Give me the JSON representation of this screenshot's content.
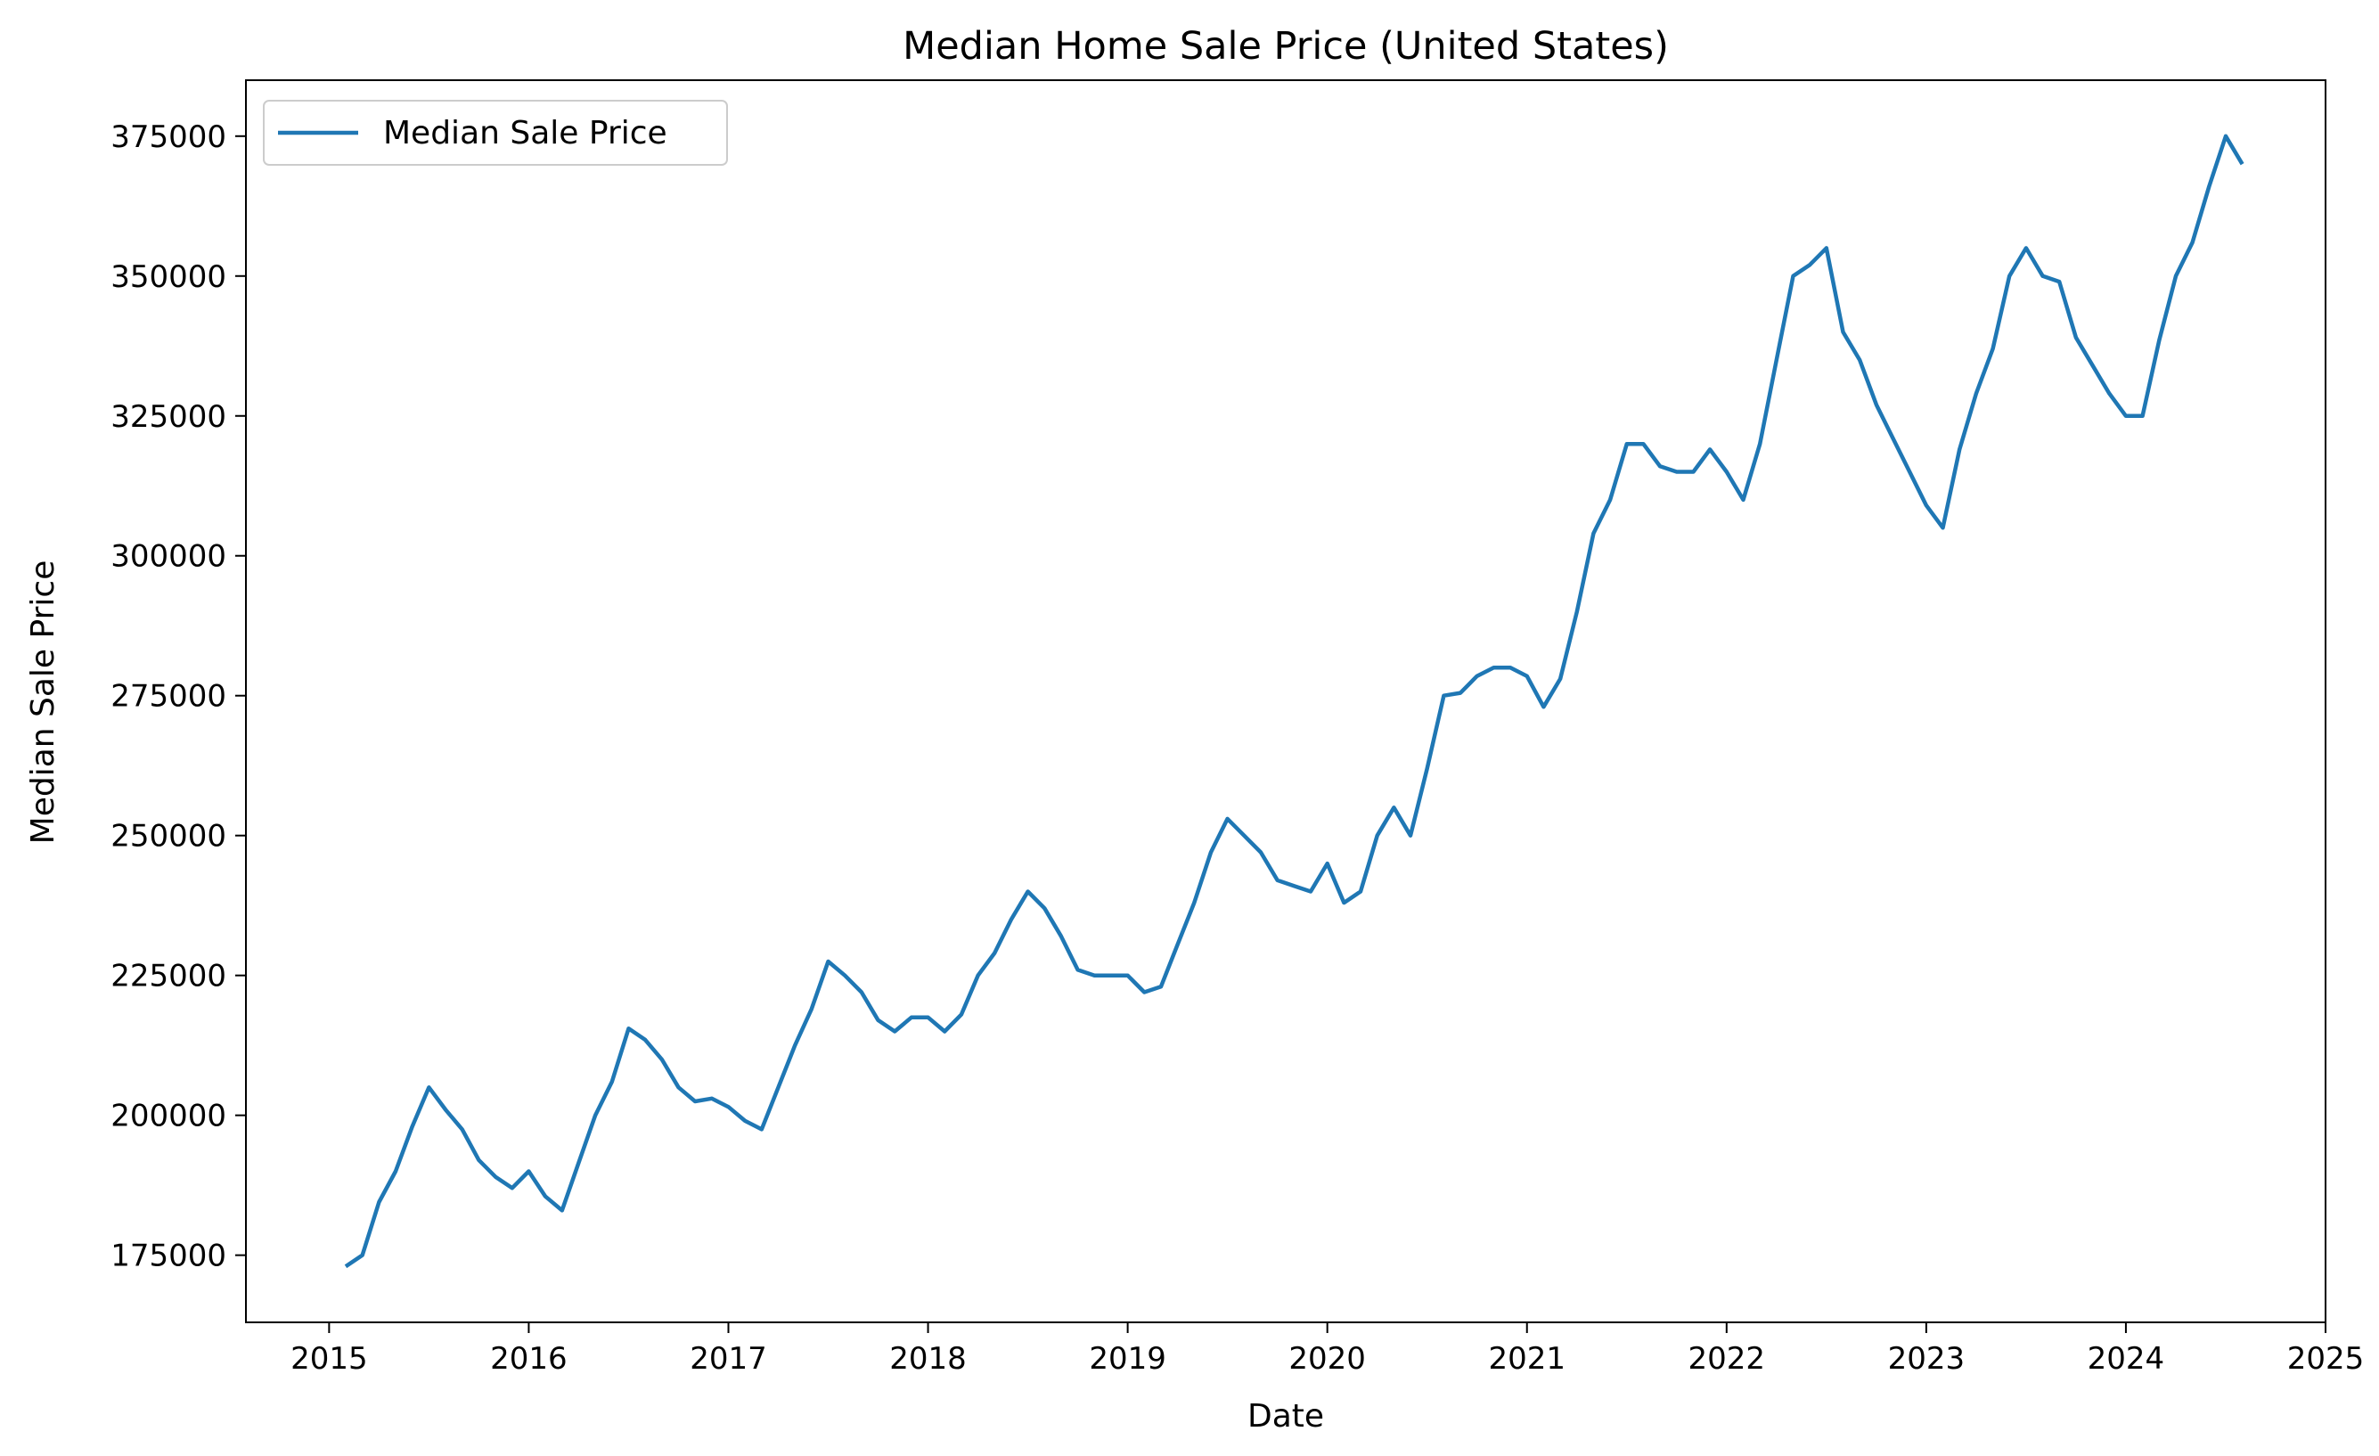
{
  "chart_data": {
    "type": "line",
    "title": "Median Home Sale Price (United States)",
    "xlabel": "Date",
    "ylabel": "Median Sale Price",
    "x_ticks": [
      "2015",
      "2016",
      "2017",
      "2018",
      "2019",
      "2020",
      "2021",
      "2022",
      "2023",
      "2024",
      "2025"
    ],
    "y_ticks": [
      175000,
      200000,
      225000,
      250000,
      275000,
      300000,
      325000,
      350000,
      375000
    ],
    "xlim": [
      "2014-08",
      "2025-01"
    ],
    "ylim": [
      163000,
      385000
    ],
    "grid": false,
    "legend_position": "top-left",
    "colors": {
      "line": "#1f77b4",
      "axes": "#000000",
      "legend_border": "#cccccc"
    },
    "series": [
      {
        "name": "Median Sale Price",
        "x": [
          "2015-02",
          "2015-03",
          "2015-04",
          "2015-05",
          "2015-06",
          "2015-07",
          "2015-08",
          "2015-09",
          "2015-10",
          "2015-11",
          "2015-12",
          "2016-01",
          "2016-02",
          "2016-03",
          "2016-04",
          "2016-05",
          "2016-06",
          "2016-07",
          "2016-08",
          "2016-09",
          "2016-10",
          "2016-11",
          "2016-12",
          "2017-01",
          "2017-02",
          "2017-03",
          "2017-04",
          "2017-05",
          "2017-06",
          "2017-07",
          "2017-08",
          "2017-09",
          "2017-10",
          "2017-11",
          "2017-12",
          "2018-01",
          "2018-02",
          "2018-03",
          "2018-04",
          "2018-05",
          "2018-06",
          "2018-07",
          "2018-08",
          "2018-09",
          "2018-10",
          "2018-11",
          "2018-12",
          "2019-01",
          "2019-02",
          "2019-03",
          "2019-04",
          "2019-05",
          "2019-06",
          "2019-07",
          "2019-08",
          "2019-09",
          "2019-10",
          "2019-11",
          "2019-12",
          "2020-01",
          "2020-02",
          "2020-03",
          "2020-04",
          "2020-05",
          "2020-06",
          "2020-07",
          "2020-08",
          "2020-09",
          "2020-10",
          "2020-11",
          "2020-12",
          "2021-01",
          "2021-02",
          "2021-03",
          "2021-04",
          "2021-05",
          "2021-06",
          "2021-07",
          "2021-08",
          "2021-09",
          "2021-10",
          "2021-11",
          "2021-12",
          "2022-01",
          "2022-02",
          "2022-03",
          "2022-04",
          "2022-05",
          "2022-06",
          "2022-07",
          "2022-08",
          "2022-09",
          "2022-10",
          "2022-11",
          "2022-12",
          "2023-01",
          "2023-02",
          "2023-03",
          "2023-04",
          "2023-05",
          "2023-06",
          "2023-07",
          "2023-08",
          "2023-09",
          "2023-10",
          "2023-11",
          "2023-12",
          "2024-01",
          "2024-02",
          "2024-03",
          "2024-04",
          "2024-05",
          "2024-06",
          "2024-07",
          "2024-08"
        ],
        "values": [
          173000,
          175000,
          184500,
          190000,
          198000,
          205000,
          201000,
          197500,
          192000,
          189000,
          187000,
          190000,
          185500,
          183000,
          191500,
          200000,
          206000,
          215500,
          213500,
          210000,
          205000,
          202500,
          203000,
          201500,
          199000,
          197500,
          205000,
          212500,
          219000,
          227500,
          225000,
          222000,
          217000,
          215000,
          217500,
          217500,
          215000,
          218000,
          225000,
          229000,
          235000,
          240000,
          237000,
          232000,
          226000,
          225000,
          225000,
          225000,
          222000,
          223000,
          230500,
          238000,
          247000,
          253000,
          250000,
          247000,
          242000,
          241000,
          240000,
          245000,
          238000,
          240000,
          250000,
          255000,
          250000,
          262000,
          275000,
          275500,
          278500,
          280000,
          280000,
          278500,
          273000,
          278000,
          290000,
          304000,
          310000,
          320000,
          320000,
          316000,
          315000,
          315000,
          319000,
          315000,
          310000,
          320000,
          335000,
          350000,
          352000,
          355000,
          340000,
          335000,
          327000,
          321000,
          315000,
          309000,
          305000,
          319000,
          329000,
          337000,
          350000,
          355000,
          350000,
          349000,
          339000,
          334000,
          329000,
          325000,
          325000,
          338500,
          350000,
          356000,
          366000,
          375000,
          370000
        ]
      }
    ]
  }
}
